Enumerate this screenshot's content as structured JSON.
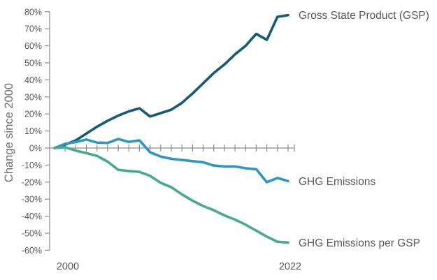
{
  "chart_data": {
    "type": "line",
    "title": "",
    "ylabel": "Change since 2000",
    "xlabel": "",
    "x": [
      2000,
      2001,
      2002,
      2003,
      2004,
      2005,
      2006,
      2007,
      2008,
      2009,
      2010,
      2011,
      2012,
      2013,
      2014,
      2015,
      2016,
      2017,
      2018,
      2019,
      2020,
      2021,
      2022
    ],
    "xlim": [
      2000,
      2022
    ],
    "ylim": [
      -60,
      80
    ],
    "grid": false,
    "x_axis_shown_labels": [
      "2000",
      "2022"
    ],
    "y_ticks": [
      "80%",
      "70%",
      "60%",
      "50%",
      "40%",
      "30%",
      "20%",
      "10%",
      "0%",
      "-10%",
      "-20%",
      "-30%",
      "-40%",
      "-50%",
      "-60%"
    ],
    "y_tick_values": [
      80,
      70,
      60,
      50,
      40,
      30,
      20,
      10,
      0,
      -10,
      -20,
      -30,
      -40,
      -50,
      -60
    ],
    "legend_position": "labels-at-line-ends",
    "series": [
      {
        "name": "Gross State Product (GSP)",
        "color": "#155B77",
        "values": [
          0,
          2,
          4.5,
          8.5,
          12.5,
          16,
          19,
          21.5,
          23.3,
          18.5,
          20.5,
          22.5,
          26.5,
          32,
          38,
          44,
          49,
          55,
          60,
          67,
          63.5,
          77,
          78
        ]
      },
      {
        "name": "GHG Emissions",
        "color": "#2E96C5",
        "values": [
          0,
          2.5,
          3.5,
          5,
          3.2,
          3,
          5.3,
          3.6,
          4.5,
          -2.5,
          -5,
          -6.3,
          -7,
          -7.7,
          -8.3,
          -10.3,
          -10.8,
          -10.8,
          -11.9,
          -12.4,
          -20.1,
          -17.6,
          -19.4
        ]
      },
      {
        "name": "GHG Emissions per GSP",
        "color": "#47AA8D",
        "values": [
          0,
          0.5,
          -1.5,
          -3,
          -4.6,
          -8,
          -12.8,
          -13.5,
          -14,
          -16.3,
          -20.4,
          -23,
          -27.2,
          -30.9,
          -34,
          -36.5,
          -39.5,
          -42,
          -45,
          -48.5,
          -52,
          -55,
          -55.5
        ]
      }
    ]
  },
  "colors": {
    "background": "#FFFFFF",
    "axis": "#8C8C8C",
    "tick_label": "#595959",
    "x_label": "#58595B",
    "series_label": "#58595B",
    "axis_title": "#6E6E6E"
  }
}
